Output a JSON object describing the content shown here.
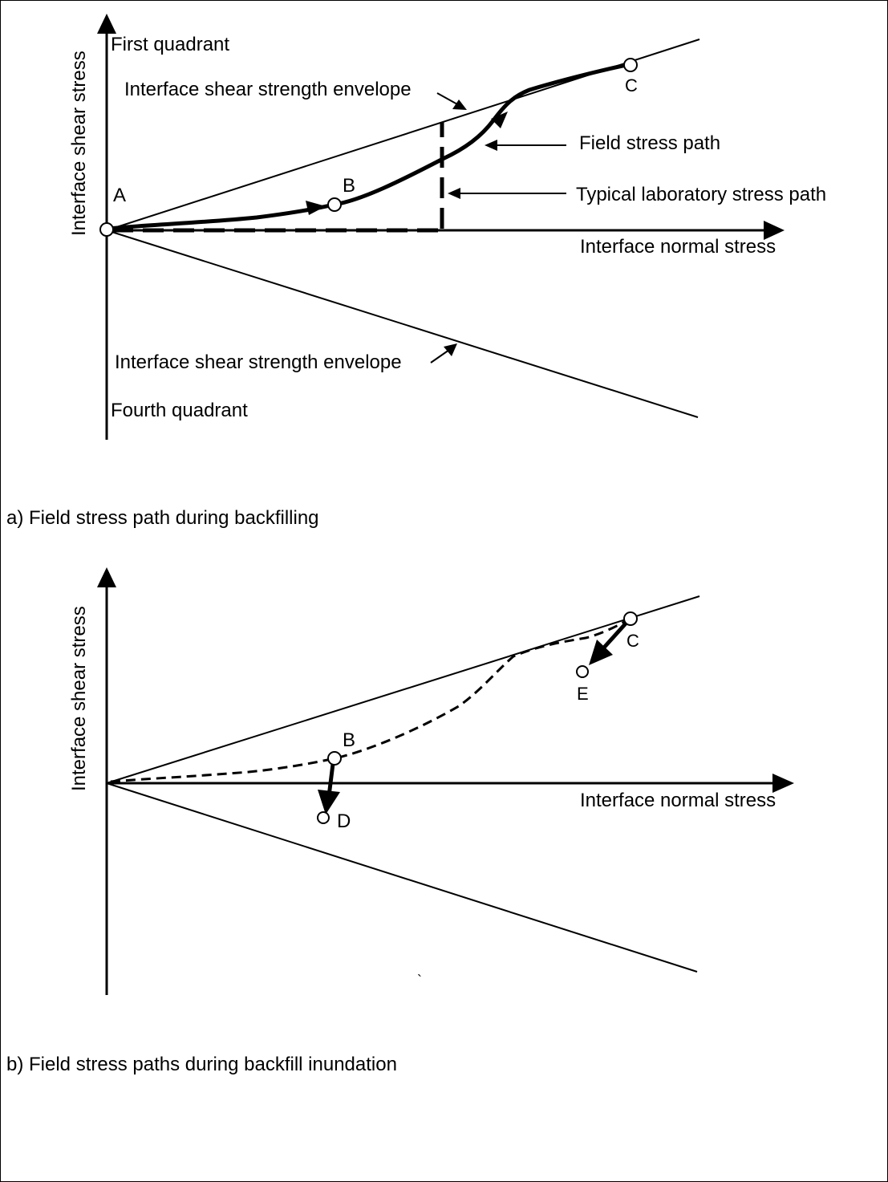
{
  "panel_a": {
    "y_axis_label": "Interface shear stress",
    "x_axis_label": "Interface normal stress",
    "first_quadrant": "First quadrant",
    "fourth_quadrant": "Fourth quadrant",
    "upper_envelope_label": "Interface shear strength envelope",
    "lower_envelope_label": "Interface shear strength envelope",
    "field_path_label": "Field stress path",
    "lab_path_label": "Typical laboratory stress path",
    "point_a": "A",
    "point_b": "B",
    "point_c": "C",
    "caption": "a) Field stress path during backfilling"
  },
  "panel_b": {
    "y_axis_label": "Interface shear stress",
    "x_axis_label": "Interface normal stress",
    "point_b": "B",
    "point_c": "C",
    "point_d": "D",
    "point_e": "E",
    "stray_mark": "`",
    "caption": "b) Field stress paths during backfill inundation"
  }
}
